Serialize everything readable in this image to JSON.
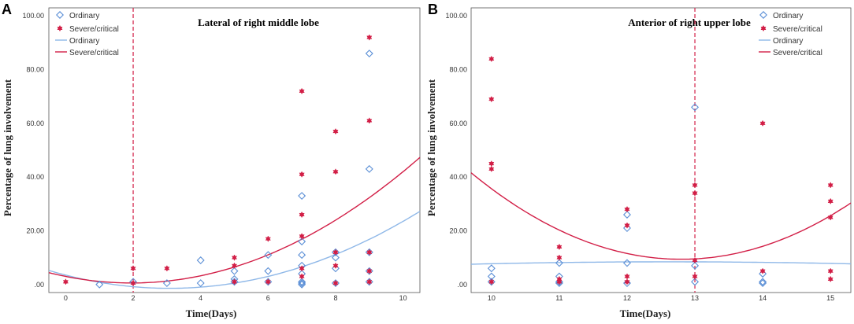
{
  "colors": {
    "ordinary": "#5b8fd6",
    "ordinary_line": "#8fb8e8",
    "severe": "#d21e46",
    "axis": "#555555"
  },
  "chart_data": [
    {
      "type": "scatter",
      "panel_label": "A",
      "title": "Lateral of right middle lobe",
      "xlabel": "Time(Days)",
      "ylabel": "Percentage of lung involvement",
      "xlim": [
        -0.5,
        10.5
      ],
      "ylim": [
        -3,
        103
      ],
      "x_ticks": [
        0,
        2,
        4,
        6,
        8,
        10
      ],
      "x_tick_labels": [
        "0",
        "2",
        "4",
        "6",
        "8",
        "10"
      ],
      "y_ticks": [
        0,
        20,
        40,
        60,
        80,
        100
      ],
      "y_tick_labels": [
        ".00",
        "20.00",
        "40.00",
        "60.00",
        "80.00",
        "100.00"
      ],
      "reference_line_x": 2,
      "legend": [
        "Ordinary",
        "Severe/critical",
        "Ordinary",
        "Severe/critical"
      ],
      "series": [
        {
          "name": "Ordinary",
          "kind": "points",
          "marker": "diamond",
          "x": [
            1,
            2,
            3,
            4,
            4,
            5,
            5,
            5,
            6,
            6,
            6,
            7,
            7,
            7,
            7,
            7,
            7,
            7,
            7,
            8,
            8,
            8,
            8,
            9,
            9,
            9,
            9,
            9
          ],
          "y": [
            0,
            1,
            0.5,
            9,
            0.5,
            1,
            2,
            5,
            1,
            5,
            11,
            33,
            16,
            11,
            7,
            4,
            1,
            0.5,
            0,
            12,
            10,
            6,
            0.5,
            86,
            43,
            12,
            5,
            1
          ]
        },
        {
          "name": "Severe/critical",
          "kind": "points",
          "marker": "star",
          "x": [
            0,
            2,
            2,
            3,
            5,
            5,
            5,
            6,
            6,
            7,
            7,
            7,
            7,
            7,
            7,
            8,
            8,
            8,
            8,
            8,
            9,
            9,
            9,
            9,
            9
          ],
          "y": [
            1,
            6,
            0.5,
            6,
            10,
            7,
            1,
            17,
            1,
            72,
            41,
            26,
            18,
            6,
            3,
            57,
            42,
            12,
            7,
            0.5,
            92,
            61,
            12,
            5,
            1
          ]
        },
        {
          "name": "Ordinary",
          "kind": "line",
          "coef": [
            3.5,
            -3.2,
            0.52
          ]
        },
        {
          "name": "Severe/critical",
          "kind": "line",
          "coef": [
            3.0,
            -2.5,
            0.64
          ]
        }
      ]
    },
    {
      "type": "scatter",
      "panel_label": "B",
      "title": "Anterior of right upper lobe",
      "xlabel": "Time(Days)",
      "ylabel": "Percentage of lung involvement",
      "xlim": [
        9.7,
        15.3
      ],
      "ylim": [
        -3,
        103
      ],
      "x_ticks": [
        10,
        11,
        12,
        13,
        14,
        15
      ],
      "x_tick_labels": [
        "10",
        "11",
        "12",
        "13",
        "14",
        "15"
      ],
      "y_ticks": [
        0,
        20,
        40,
        60,
        80,
        100
      ],
      "y_tick_labels": [
        ".00",
        "20.00",
        "40.00",
        "60.00",
        "80.00",
        "100.00"
      ],
      "reference_line_x": 13,
      "legend": [
        "Ordinary",
        "Severe/critical",
        "Ordinary",
        "Severe/critical"
      ],
      "series": [
        {
          "name": "Ordinary",
          "kind": "points",
          "marker": "diamond",
          "x": [
            10,
            10,
            10,
            11,
            11,
            11,
            11,
            12,
            12,
            12,
            12,
            13,
            13,
            13,
            14,
            14,
            14
          ],
          "y": [
            6,
            3,
            1,
            8,
            3,
            1,
            0.5,
            26,
            21,
            8,
            0.5,
            66,
            7,
            1,
            4,
            1,
            0.5
          ],
          "ordinary_extra": []
        },
        {
          "name": "Severe/critical",
          "kind": "points",
          "marker": "star",
          "x": [
            10,
            10,
            10,
            10,
            10,
            11,
            11,
            11,
            11,
            12,
            12,
            12,
            12,
            13,
            13,
            13,
            13,
            14,
            14,
            15,
            15,
            15,
            15,
            15
          ],
          "y": [
            84,
            69,
            45,
            43,
            1,
            14,
            10,
            2,
            1,
            28,
            22,
            3,
            1,
            37,
            34,
            9,
            3,
            60,
            5,
            37,
            31,
            25,
            5,
            2
          ]
        },
        {
          "name": "Ordinary",
          "kind": "line",
          "coef": [
            -8.28,
            2.65,
            -0.105
          ],
          "x_offset": 0
        },
        {
          "name": "Severe/critical",
          "kind": "line",
          "coef": [
            9.4,
            0,
            3.35
          ],
          "vertex": 12.8
        }
      ]
    }
  ]
}
